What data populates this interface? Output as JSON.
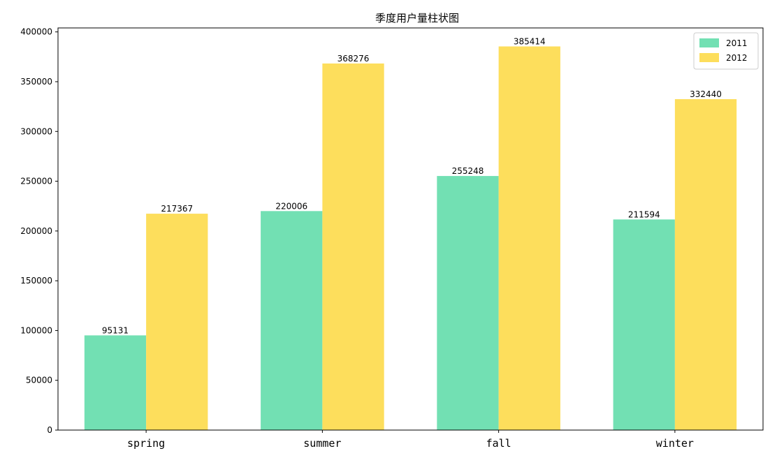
{
  "chart_data": {
    "type": "bar",
    "title": "季度用户量柱状图",
    "xlabel": "",
    "ylabel": "",
    "categories": [
      "spring",
      "summer",
      "fall",
      "winter"
    ],
    "series": [
      {
        "name": "2011",
        "values": [
          95131,
          220006,
          255248,
          211594
        ],
        "color": "#72E0B3"
      },
      {
        "name": "2012",
        "values": [
          217367,
          368276,
          385414,
          332440
        ],
        "color": "#FDDE5C"
      }
    ],
    "ylim": [
      0,
      404000
    ],
    "yticks": [
      "0",
      "50000",
      "100000",
      "150000",
      "200000",
      "250000",
      "300000",
      "350000",
      "400000"
    ],
    "grid": false,
    "legend_position": "top-right"
  }
}
